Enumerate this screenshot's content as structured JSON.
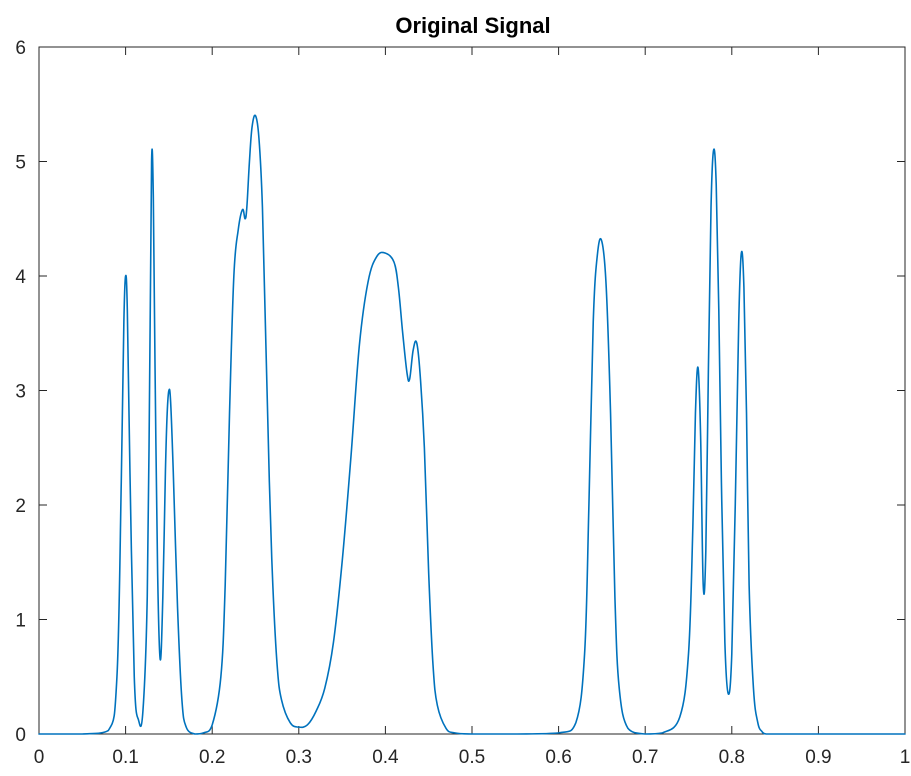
{
  "chart_data": {
    "type": "line",
    "title": "Original Signal",
    "xlabel": "",
    "ylabel": "",
    "xlim": [
      0,
      1
    ],
    "ylim": [
      0,
      6
    ],
    "x_ticks": [
      0,
      0.1,
      0.2,
      0.3,
      0.4,
      0.5,
      0.6,
      0.7,
      0.8,
      0.9,
      1
    ],
    "x_tick_labels": [
      "0",
      "0.1",
      "0.2",
      "0.3",
      "0.4",
      "0.5",
      "0.6",
      "0.7",
      "0.8",
      "0.9",
      "1"
    ],
    "y_ticks": [
      0,
      1,
      2,
      3,
      4,
      5,
      6
    ],
    "y_tick_labels": [
      "0",
      "1",
      "2",
      "3",
      "4",
      "5",
      "6"
    ],
    "grid": false,
    "line_color": "#0072BD",
    "axis_color": "#262626",
    "series": [
      {
        "x": [
          0,
          0.05,
          0.08,
          0.09,
          0.095,
          0.098,
          0.1,
          0.102,
          0.105,
          0.11,
          0.115,
          0.12,
          0.125,
          0.128,
          0.13,
          0.132,
          0.134,
          0.137,
          0.14,
          0.143,
          0.146,
          0.148,
          0.15,
          0.152,
          0.155,
          0.16,
          0.165,
          0.17,
          0.18,
          0.19,
          0.2,
          0.21,
          0.215,
          0.22,
          0.225,
          0.23,
          0.235,
          0.238,
          0.24,
          0.243,
          0.246,
          0.25,
          0.254,
          0.258,
          0.262,
          0.266,
          0.27,
          0.275,
          0.28,
          0.29,
          0.3,
          0.31,
          0.32,
          0.33,
          0.34,
          0.35,
          0.36,
          0.37,
          0.38,
          0.39,
          0.4,
          0.41,
          0.415,
          0.42,
          0.425,
          0.428,
          0.432,
          0.436,
          0.44,
          0.445,
          0.45,
          0.455,
          0.46,
          0.47,
          0.48,
          0.5,
          0.55,
          0.6,
          0.62,
          0.63,
          0.635,
          0.64,
          0.645,
          0.65,
          0.655,
          0.66,
          0.665,
          0.67,
          0.68,
          0.7,
          0.72,
          0.74,
          0.75,
          0.755,
          0.758,
          0.761,
          0.764,
          0.767,
          0.77,
          0.773,
          0.776,
          0.779,
          0.782,
          0.785,
          0.788,
          0.792,
          0.796,
          0.8,
          0.804,
          0.808,
          0.811,
          0.814,
          0.817,
          0.82,
          0.825,
          0.83,
          0.835,
          0.84,
          0.85,
          0.9,
          1
        ],
        "y": [
          0,
          0,
          0.03,
          0.5,
          2.2,
          3.6,
          4.0,
          3.7,
          2.3,
          0.5,
          0.12,
          0.2,
          1.2,
          3.3,
          5.0,
          4.7,
          3.2,
          1.4,
          0.65,
          1.2,
          2.3,
          2.8,
          3.0,
          2.9,
          2.3,
          1.1,
          0.3,
          0.06,
          0,
          0.01,
          0.08,
          0.5,
          1.3,
          2.8,
          4.0,
          4.4,
          4.58,
          4.5,
          4.6,
          5.0,
          5.3,
          5.4,
          5.2,
          4.6,
          3.4,
          2.2,
          1.3,
          0.6,
          0.3,
          0.1,
          0.06,
          0.08,
          0.2,
          0.4,
          0.8,
          1.5,
          2.4,
          3.4,
          3.95,
          4.17,
          4.2,
          4.12,
          3.9,
          3.5,
          3.15,
          3.1,
          3.35,
          3.42,
          3.15,
          2.5,
          1.4,
          0.6,
          0.25,
          0.05,
          0.01,
          0,
          0,
          0.01,
          0.1,
          0.7,
          2.0,
          3.6,
          4.2,
          4.3,
          3.9,
          2.8,
          1.2,
          0.4,
          0.05,
          0,
          0.01,
          0.15,
          0.7,
          1.8,
          2.8,
          3.2,
          2.6,
          1.3,
          1.6,
          3.2,
          4.6,
          5.1,
          4.8,
          3.7,
          2.2,
          0.8,
          0.35,
          0.7,
          2.0,
          3.6,
          4.2,
          3.9,
          2.8,
          1.3,
          0.4,
          0.1,
          0.02,
          0,
          0,
          0,
          0
        ]
      }
    ]
  }
}
